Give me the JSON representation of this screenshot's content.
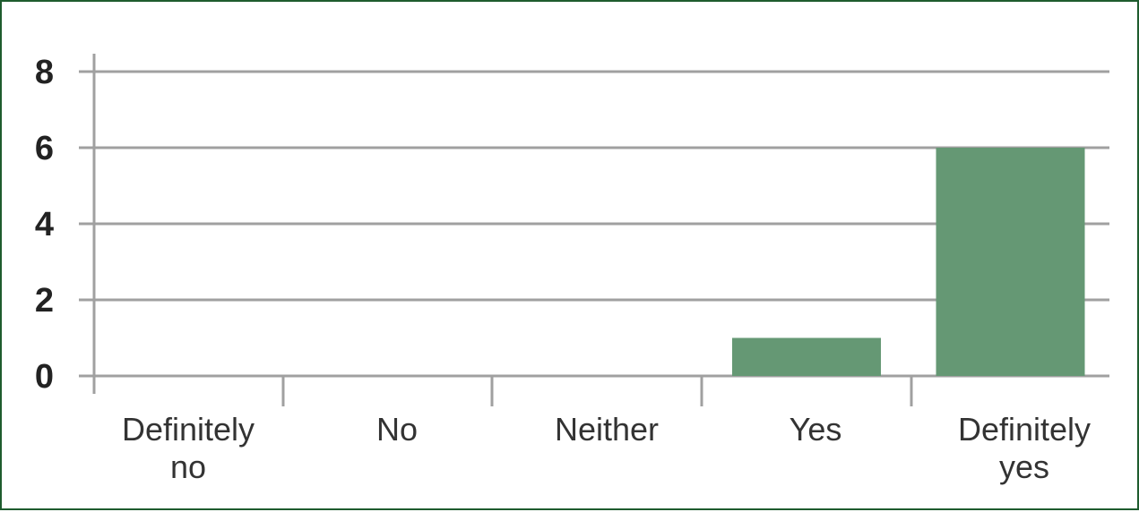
{
  "chart_data": {
    "type": "bar",
    "categories": [
      [
        "Definitely",
        "no"
      ],
      [
        "No"
      ],
      [
        "Neither"
      ],
      [
        "Yes"
      ],
      [
        "Definitely",
        "yes"
      ]
    ],
    "values": [
      0,
      0,
      0,
      1,
      6
    ],
    "title": "",
    "xlabel": "",
    "ylabel": "",
    "ylim": [
      0,
      8
    ],
    "yticks": [
      0,
      2,
      4,
      6,
      8
    ],
    "grid": true,
    "legend": "none",
    "colors": {
      "bar": "#659874",
      "grid": "#a0a0a0",
      "border": "#1e5c2e"
    }
  }
}
